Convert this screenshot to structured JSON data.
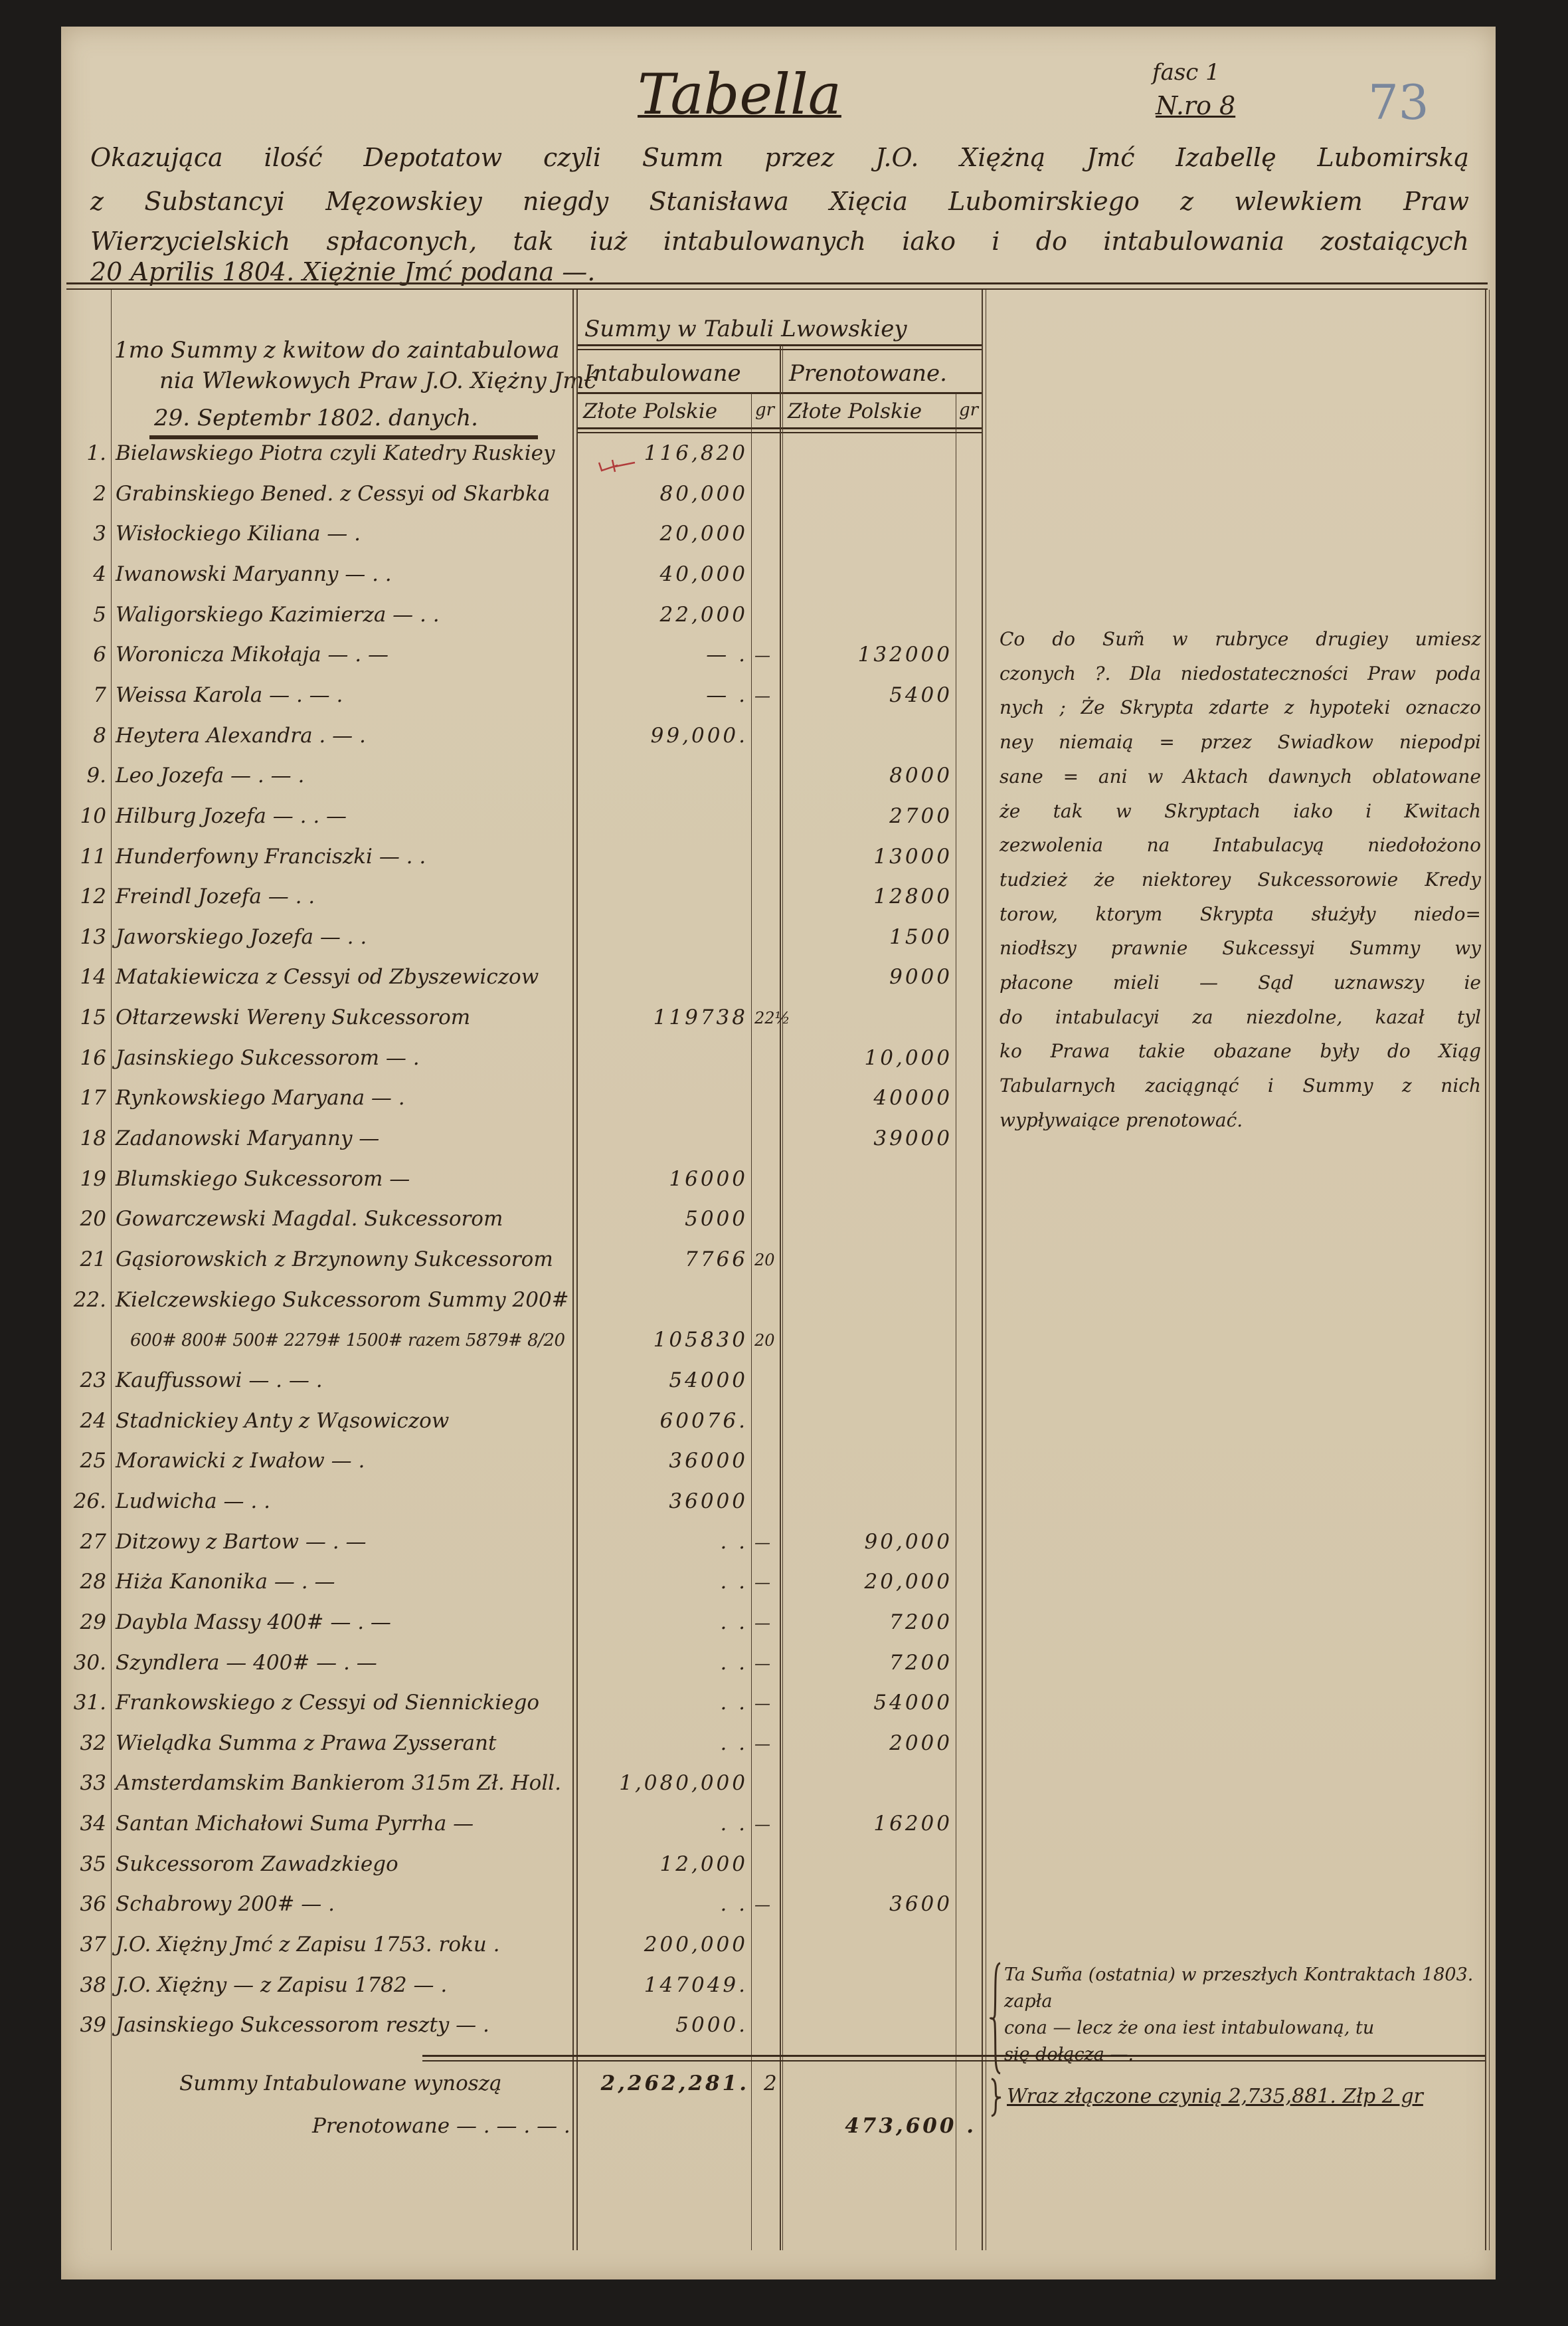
{
  "header": {
    "title": "Tabella",
    "fascicle": "fasc 1",
    "number": "N.ro 8",
    "pencil_folio": "73",
    "intro_lines": [
      "Okazująca ilość Depotatow czyli Summ przez J.O. Xiężną Jmć Izabellę Lubomirską",
      "z Substancyi Męzowskiey niegdy Stanisława Xięcia Lubomirskiego z wlewkiem Praw",
      "Wierzycielskich spłaconych, tak iuż intabulowanych iako i do intabulowania zostaiących",
      "20 Aprilis 1804. Xiężnie Jmć podana —."
    ]
  },
  "table": {
    "left_header_lines": [
      "1mo Summy z kwitow do zaintabulowa",
      "nia Wlewkowych Praw J.O. Xiężny Jmć",
      "29. Septembr 1802. danych."
    ],
    "group_header": "Summy w Tabuli Lwowskiey",
    "col_intab": "Intabulowane",
    "col_prenot": "Prenotowane.",
    "col_zl": "Złote Polskie",
    "col_gr": "gr",
    "rows": [
      {
        "num": "1.",
        "name": "Bielawskiego Piotra czyli Katedry Ruskiey",
        "int_zl": "116,820",
        "int_gr": "",
        "pre_zl": "",
        "pre_gr": ""
      },
      {
        "num": "2",
        "name": "Grabinskiego Bened. z Cessyi od Skarbka",
        "int_zl": "80,000",
        "int_gr": "",
        "pre_zl": "",
        "pre_gr": ""
      },
      {
        "num": "3",
        "name": "Wisłockiego Kiliana   —    .",
        "int_zl": "20,000",
        "int_gr": "",
        "pre_zl": "",
        "pre_gr": ""
      },
      {
        "num": "4",
        "name": "Iwanowski Maryanny  —  .  .",
        "int_zl": "40,000",
        "int_gr": "",
        "pre_zl": "",
        "pre_gr": ""
      },
      {
        "num": "5",
        "name": "Waligorskiego Kazimierza  —  .  .",
        "int_zl": "22,000",
        "int_gr": "",
        "pre_zl": "",
        "pre_gr": ""
      },
      {
        "num": "6",
        "name": "Woronicza Mikołaja  —   .   —",
        "int_zl": "—  .",
        "int_gr": "—",
        "pre_zl": "132000",
        "pre_gr": ""
      },
      {
        "num": "7",
        "name": "Weissa Karola  —  .  —  .",
        "int_zl": "—  .",
        "int_gr": "—",
        "pre_zl": "5400",
        "pre_gr": ""
      },
      {
        "num": "8",
        "name": "Heytera Alexandra   .  —  .",
        "int_zl": "99,000.",
        "int_gr": "",
        "pre_zl": "",
        "pre_gr": ""
      },
      {
        "num": "9.",
        "name": "Leo Jozefa  —   .  —  .",
        "int_zl": "",
        "int_gr": "",
        "pre_zl": "8000",
        "pre_gr": ""
      },
      {
        "num": "10",
        "name": "Hilburg Jozefa  —  .  .  —",
        "int_zl": "",
        "int_gr": "",
        "pre_zl": "2700",
        "pre_gr": ""
      },
      {
        "num": "11",
        "name": "Hunderfowny Franciszki  —  .  .",
        "int_zl": "",
        "int_gr": "",
        "pre_zl": "13000",
        "pre_gr": ""
      },
      {
        "num": "12",
        "name": "Freindl Jozefa   —   .  .",
        "int_zl": "",
        "int_gr": "",
        "pre_zl": "12800",
        "pre_gr": ""
      },
      {
        "num": "13",
        "name": "Jaworskiego Jozefa   —   .  .",
        "int_zl": "",
        "int_gr": "",
        "pre_zl": "1500",
        "pre_gr": ""
      },
      {
        "num": "14",
        "name": "Matakiewicza z Cessyi od Zbyszewiczow",
        "int_zl": "",
        "int_gr": "",
        "pre_zl": "9000",
        "pre_gr": ""
      },
      {
        "num": "15",
        "name": "Ołtarzewski Wereny Sukcessorom",
        "int_zl": "119738",
        "int_gr": "22½",
        "pre_zl": "",
        "pre_gr": ""
      },
      {
        "num": "16",
        "name": "Jasinskiego Sukcessorom   —  .",
        "int_zl": "",
        "int_gr": "",
        "pre_zl": "10,000",
        "pre_gr": ""
      },
      {
        "num": "17",
        "name": "Rynkowskiego Maryana   —  .",
        "int_zl": "",
        "int_gr": "",
        "pre_zl": "40000",
        "pre_gr": ""
      },
      {
        "num": "18",
        "name": "Zadanowski Maryanny   —",
        "int_zl": "",
        "int_gr": "",
        "pre_zl": "39000",
        "pre_gr": ""
      },
      {
        "num": "19",
        "name": "Blumskiego Sukcessorom   —",
        "int_zl": "16000",
        "int_gr": "",
        "pre_zl": "",
        "pre_gr": ""
      },
      {
        "num": "20",
        "name": "Gowarczewski Magdal. Sukcessorom",
        "int_zl": "5000",
        "int_gr": "",
        "pre_zl": "",
        "pre_gr": ""
      },
      {
        "num": "21",
        "name": "Gąsiorowskich z Brzynowny Sukcessorom",
        "int_zl": "7766",
        "int_gr": "20",
        "pre_zl": "",
        "pre_gr": ""
      },
      {
        "num": "22.",
        "name": "Kielczewskiego Sukcessorom Summy 200#",
        "int_zl": "",
        "int_gr": "",
        "pre_zl": "",
        "pre_gr": ""
      },
      {
        "num": "",
        "name": "   600# 800# 500# 2279# 1500# razem 5879# 8/20",
        "int_zl": "105830",
        "int_gr": "20",
        "pre_zl": "",
        "pre_gr": ""
      },
      {
        "num": "23",
        "name": "Kauffussowi  —   .   —  .",
        "int_zl": "54000",
        "int_gr": "",
        "pre_zl": "",
        "pre_gr": ""
      },
      {
        "num": "24",
        "name": "Stadnickiey Anty z Wąsowiczow",
        "int_zl": "60076.",
        "int_gr": "",
        "pre_zl": "",
        "pre_gr": ""
      },
      {
        "num": "25",
        "name": "Morawicki z Iwałow      —  .",
        "int_zl": "36000",
        "int_gr": "",
        "pre_zl": "",
        "pre_gr": ""
      },
      {
        "num": "26.",
        "name": "Ludwicha          —  .  .",
        "int_zl": "36000",
        "int_gr": "",
        "pre_zl": "",
        "pre_gr": ""
      },
      {
        "num": "27",
        "name": "Ditzowy z Bartow   —   .  —",
        "int_zl": ".   .",
        "int_gr": "—",
        "pre_zl": "90,000",
        "pre_gr": ""
      },
      {
        "num": "28",
        "name": "Hiża Kanonika   —   .  —",
        "int_zl": ".   .",
        "int_gr": "—",
        "pre_zl": "20,000",
        "pre_gr": ""
      },
      {
        "num": "29",
        "name": "Daybla Massy  400#  —  .  —",
        "int_zl": ".   .",
        "int_gr": "—",
        "pre_zl": "7200",
        "pre_gr": ""
      },
      {
        "num": "30.",
        "name": "Szyndlera  —  400#  —  .  —",
        "int_zl": ".   .",
        "int_gr": "—",
        "pre_zl": "7200",
        "pre_gr": ""
      },
      {
        "num": "31.",
        "name": "Frankowskiego z Cessyi od Siennickiego",
        "int_zl": ".   .",
        "int_gr": "—",
        "pre_zl": "54000",
        "pre_gr": ""
      },
      {
        "num": "32",
        "name": "Wielądka Summa z Prawa Zysserant",
        "int_zl": ".   .",
        "int_gr": "—",
        "pre_zl": "2000",
        "pre_gr": ""
      },
      {
        "num": "33",
        "name": "Amsterdamskim Bankierom 315m Zł. Holl.",
        "int_zl": "1,080,000",
        "int_gr": "",
        "pre_zl": "",
        "pre_gr": ""
      },
      {
        "num": "34",
        "name": "Santan Michałowi Suma Pyrrha  —",
        "int_zl": ".   .",
        "int_gr": "—",
        "pre_zl": "16200",
        "pre_gr": ""
      },
      {
        "num": "35",
        "name": "Sukcessorom Zawadzkiego",
        "int_zl": "12,000",
        "int_gr": "",
        "pre_zl": "",
        "pre_gr": ""
      },
      {
        "num": "36",
        "name": "Schabrowy 200#    —    .",
        "int_zl": ".   .",
        "int_gr": "—",
        "pre_zl": "3600",
        "pre_gr": ""
      },
      {
        "num": "37",
        "name": "J.O. Xiężny Jmć z Zapisu 1753. roku  .",
        "int_zl": "200,000",
        "int_gr": "",
        "pre_zl": "",
        "pre_gr": ""
      },
      {
        "num": "38",
        "name": "J.O. Xiężny — z Zapisu 1782  —  .",
        "int_zl": "147049.",
        "int_gr": "",
        "pre_zl": "",
        "pre_gr": ""
      },
      {
        "num": "39",
        "name": "Jasinskiego Sukcessorom reszty  — .",
        "int_zl": "5000.",
        "int_gr": "",
        "pre_zl": "",
        "pre_gr": ""
      }
    ],
    "totals": {
      "intab_label": "Summy Intabulowane wynoszą",
      "intab_zl": "2,262,281.",
      "intab_gr": "2",
      "prenot_label": "Prenotowane  — .  —  . — .",
      "prenot_zl": "473,600 ."
    }
  },
  "side_note": {
    "lines": [
      "Co do Sum̃ w rubryce drugiey umiesz",
      "czonych ?. Dla niedostateczności Praw poda",
      "nych ; Że Skrypta zdarte z hypoteki oznaczo",
      "ney niemaią = przez Swiadkow niepodpi",
      "sane = ani w Aktach dawnych oblatowane",
      "że tak w Skryptach iako i Kwitach",
      "zezwolenia na Intabulacyą niedołożono",
      "tudzież że niektorey Sukcessorowie Kredy",
      "torow, ktorym Skrypta służyły niedo=",
      "niodłszy prawnie Sukcessyi Summy wy",
      "płacone mieli — Sąd uznawszy ie",
      "do intabulacyi za niezdolne, kazał tyl",
      "ko Prawa takie obazane były do Xiąg",
      "Tabularnych zaciągnąć i Summy z nich",
      "wypływaiące prenotować."
    ]
  },
  "bottom_note": {
    "lines": [
      "Ta Sum̃a (ostatnia) w przeszłych Kontraktach 1803. zapła",
      "cona — lecz że ona iest intabulowaną, tu",
      "się dołącza —."
    ],
    "total_line": "Wraz złączone czynią 2,735,881. Złp 2 gr"
  },
  "colors": {
    "ink": "#2b1f15",
    "paper": "#d7c9ae",
    "pencil": "#7a879c",
    "red_mark": "#b03a3a"
  }
}
